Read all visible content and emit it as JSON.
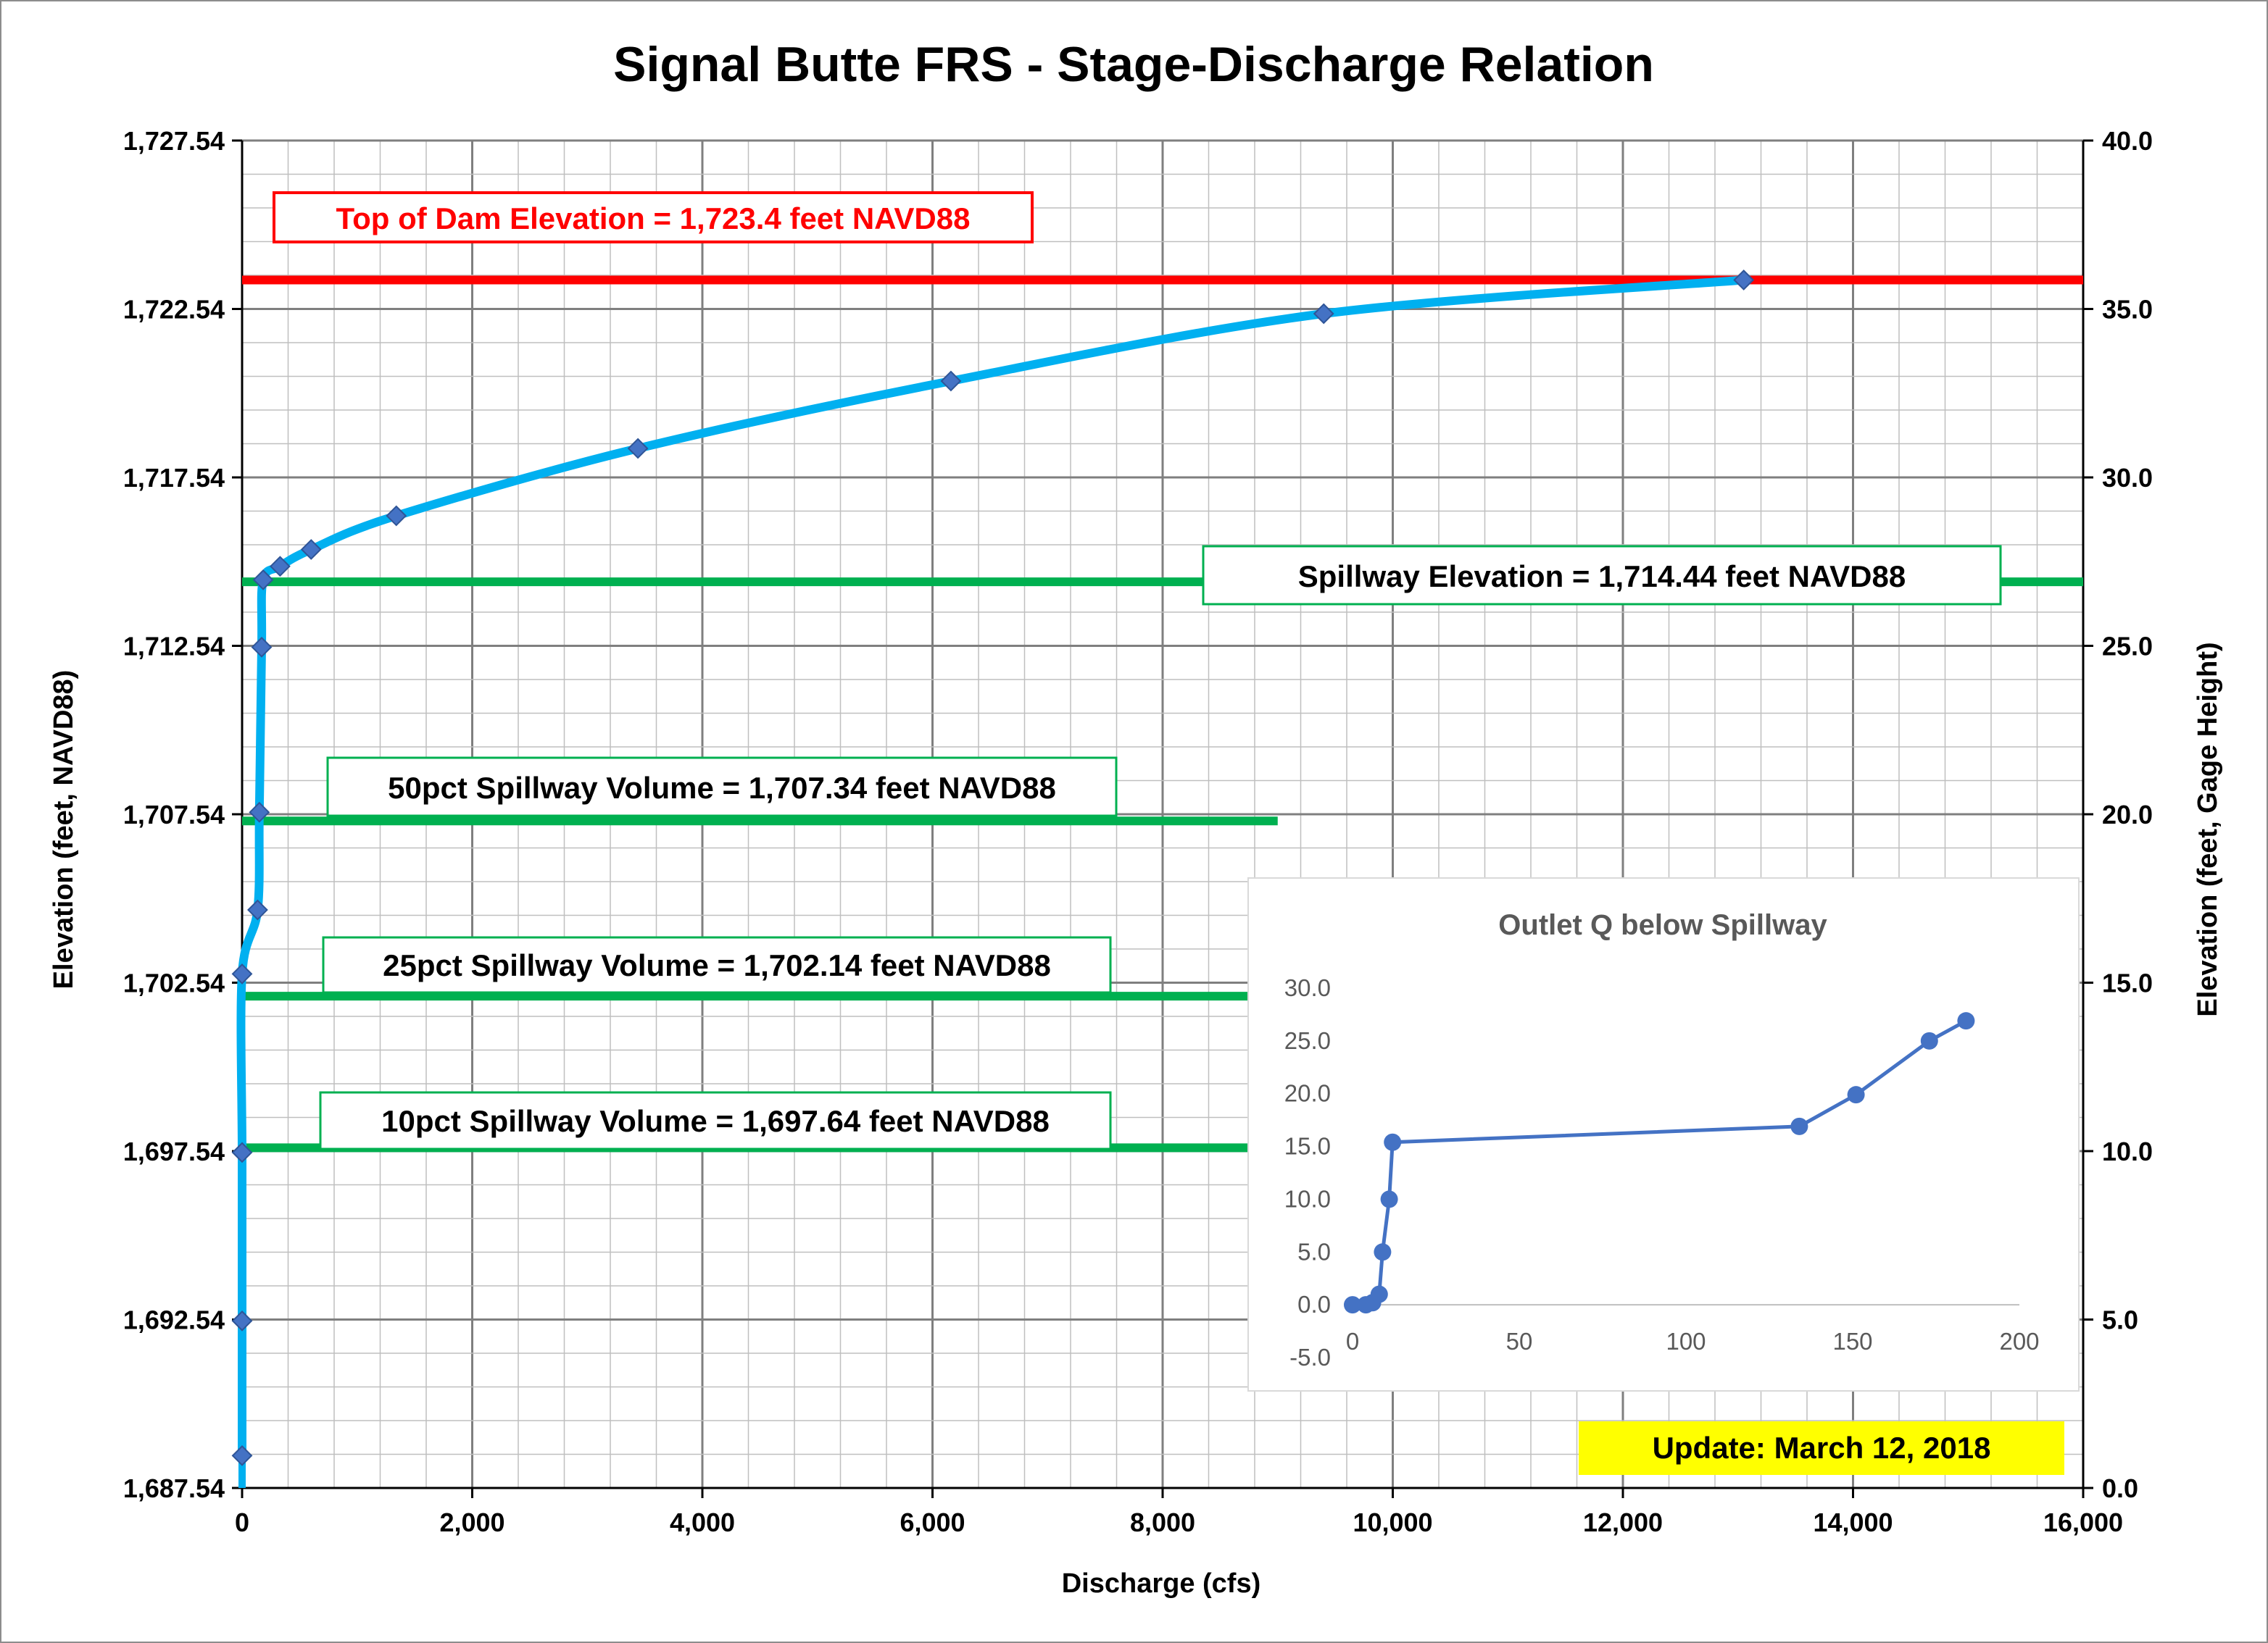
{
  "chart_data": [
    {
      "type": "line",
      "title": "Signal Butte FRS - Stage-Discharge Relation",
      "xlabel": "Discharge (cfs)",
      "ylabel": "Elevation (feet, NAVD88)",
      "y2label": "Elevation (feet, Gage Height)",
      "xlim": [
        0,
        16000
      ],
      "ylim": [
        1687.54,
        1727.54
      ],
      "y2lim": [
        0.0,
        40.0
      ],
      "x_ticks": [
        "0",
        "2,000",
        "4,000",
        "6,000",
        "8,000",
        "10,000",
        "12,000",
        "14,000",
        "16,000"
      ],
      "y_ticks": [
        "1,687.54",
        "1,692.54",
        "1,697.54",
        "1,702.54",
        "1,707.54",
        "1,712.54",
        "1,717.54",
        "1,722.54",
        "1,727.54"
      ],
      "y2_ticks": [
        "0.0",
        "5.0",
        "10.0",
        "15.0",
        "20.0",
        "25.0",
        "30.0",
        "35.0",
        "40.0"
      ],
      "grid": true,
      "series": [
        {
          "color": "#00b0f0",
          "marker_color": "#4472c4",
          "x": [
            0,
            0,
            0,
            0,
            135,
            150,
            170,
            183,
            330,
            600,
            1340,
            3440,
            6160,
            9400,
            13050
          ],
          "y": [
            1688.5,
            1692.5,
            1697.5,
            1702.8,
            1704.7,
            1707.6,
            1712.5,
            1714.5,
            1714.9,
            1715.4,
            1716.4,
            1718.4,
            1720.4,
            1722.4,
            1723.4
          ]
        }
      ],
      "reference_lines": [
        {
          "label": "Top of Dam Elevation = 1,723.4 feet NAVD88",
          "y": 1723.4,
          "x_end": 16000,
          "color": "#ff0000"
        },
        {
          "label": "Spillway Elevation = 1,714.44 feet NAVD88",
          "y": 1714.44,
          "x_end": 16000,
          "color": "#00b050"
        },
        {
          "label": "50pct Spillway Volume = 1,707.34 feet NAVD88",
          "y": 1707.34,
          "x_end": 9000,
          "color": "#00b050"
        },
        {
          "label": "25pct Spillway Volume = 1,702.14 feet NAVD88",
          "y": 1702.14,
          "x_end": 9000,
          "color": "#00b050"
        },
        {
          "label": "10pct Spillway Volume = 1,697.64 feet NAVD88",
          "y": 1697.64,
          "x_end": 9000,
          "color": "#00b050"
        }
      ],
      "annotation": "Update: March 12, 2018",
      "annotation_color": "#ffff00"
    },
    {
      "type": "line",
      "title": "Outlet Q below Spillway",
      "xlim": [
        0,
        200
      ],
      "ylim": [
        -5.0,
        30.0
      ],
      "x_ticks": [
        "0",
        "50",
        "100",
        "150",
        "200"
      ],
      "y_ticks": [
        "-5.0",
        "0.0",
        "5.0",
        "10.0",
        "15.0",
        "20.0",
        "25.0",
        "30.0"
      ],
      "grid": false,
      "series": [
        {
          "color": "#4472c4",
          "x": [
            0,
            4,
            6,
            8,
            9,
            11,
            12,
            134,
            151,
            173,
            184
          ],
          "y": [
            0.0,
            0.0,
            0.2,
            1.0,
            5.0,
            10.0,
            15.4,
            16.9,
            19.9,
            25.0,
            26.9
          ]
        }
      ]
    }
  ]
}
